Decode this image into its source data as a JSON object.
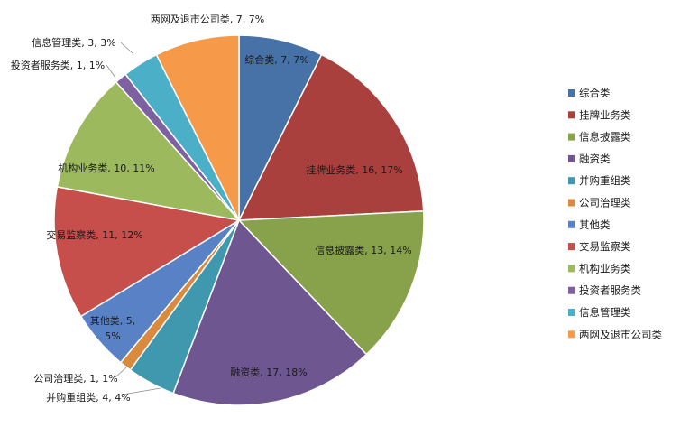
{
  "chart_data": {
    "type": "pie",
    "title": "",
    "slices": [
      {
        "name": "综合类",
        "value": 7,
        "percent": "7%",
        "color": "#4672A8"
      },
      {
        "name": "挂牌业务类",
        "value": 16,
        "percent": "17%",
        "color": "#A9403D"
      },
      {
        "name": "信息披露类",
        "value": 13,
        "percent": "14%",
        "color": "#87A24A"
      },
      {
        "name": "融资类",
        "value": 17,
        "percent": "18%",
        "color": "#6E5690"
      },
      {
        "name": "并购重组类",
        "value": 4,
        "percent": "4%",
        "color": "#3F98AE"
      },
      {
        "name": "公司治理类",
        "value": 1,
        "percent": "1%",
        "color": "#DA8A3E"
      },
      {
        "name": "其他类",
        "value": 5,
        "percent": "5%",
        "color": "#5982C6"
      },
      {
        "name": "交易监察类",
        "value": 11,
        "percent": "12%",
        "color": "#C64E4B"
      },
      {
        "name": "机构业务类",
        "value": 10,
        "percent": "11%",
        "color": "#9CBA5D"
      },
      {
        "name": "投资者服务类",
        "value": 1,
        "percent": "1%",
        "color": "#7D61A0"
      },
      {
        "name": "信息管理类",
        "value": 3,
        "percent": "3%",
        "color": "#4BAFC8"
      },
      {
        "name": "两网及退市公司类",
        "value": 7,
        "percent": "7%",
        "color": "#F69A4A"
      }
    ],
    "data_labels": [
      {
        "lines": [
          "综合类, 7, 7%"
        ]
      },
      {
        "lines": [
          "挂牌业务类, 16, 17%"
        ]
      },
      {
        "lines": [
          "信息披露类, 13, 14%"
        ]
      },
      {
        "lines": [
          "融资类, 17, 18%"
        ]
      },
      {
        "lines": [
          "并购重组类, 4, 4%"
        ]
      },
      {
        "lines": [
          "公司治理类, 1, 1%"
        ]
      },
      {
        "lines": [
          "其他类, 5,",
          "5%"
        ]
      },
      {
        "lines": [
          "交易监察类, 11, 12%"
        ]
      },
      {
        "lines": [
          "机构业务类, 10, 11%"
        ]
      },
      {
        "lines": [
          "投资者服务类, 1, 1%"
        ]
      },
      {
        "lines": [
          "信息管理类, 3, 3%"
        ]
      },
      {
        "lines": [
          "两网及退市公司类, 7, 7%"
        ]
      }
    ],
    "legend_position": "right"
  }
}
